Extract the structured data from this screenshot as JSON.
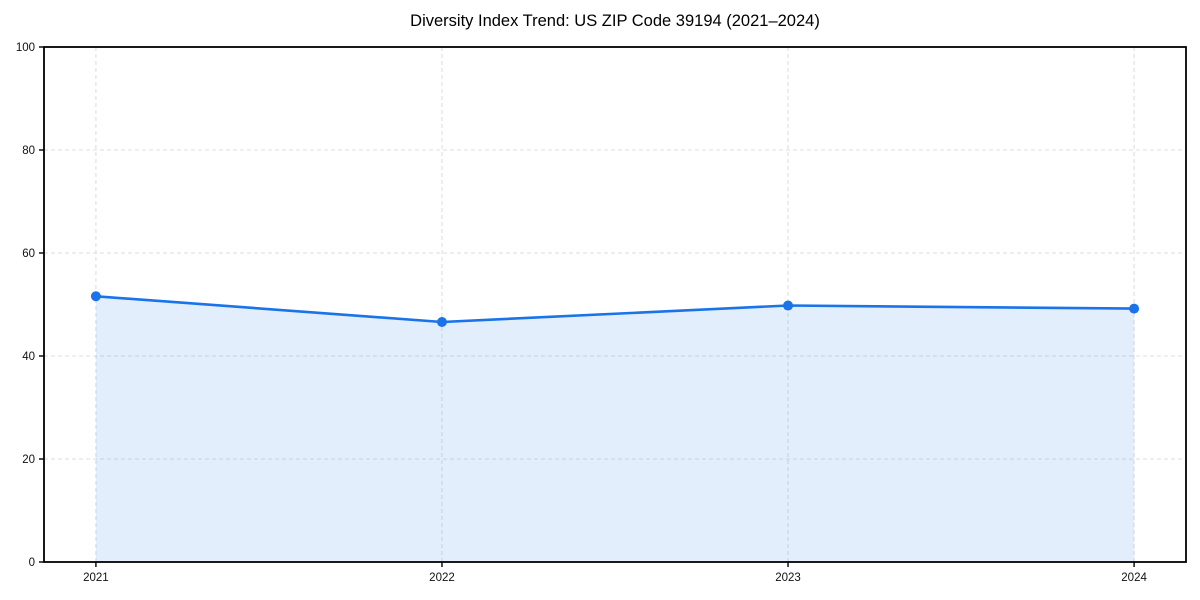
{
  "title": "Diversity Index Trend: US ZIP Code 39194 (2021–2024)",
  "chart_data": {
    "type": "line",
    "title": "Diversity Index Trend: US ZIP Code 39194 (2021–2024)",
    "categories": [
      "2021",
      "2022",
      "2023",
      "2024"
    ],
    "x": [
      2021,
      2022,
      2023,
      2024
    ],
    "values": [
      51.6,
      46.6,
      49.8,
      49.2
    ],
    "xlabel": "",
    "ylabel": "",
    "ylim": [
      0,
      100
    ],
    "yticks": [
      0,
      20,
      40,
      60,
      80,
      100
    ],
    "grid": true,
    "grid_style": "dashed",
    "legend": "none",
    "area_fill": true,
    "marker": "circle",
    "colors": {
      "line": "#1a73e8",
      "fill": "rgba(26,115,232,0.12)",
      "grid": "#dcdcdc",
      "axis": "#000000",
      "tick_text": "#111111",
      "background": "#ffffff"
    }
  }
}
